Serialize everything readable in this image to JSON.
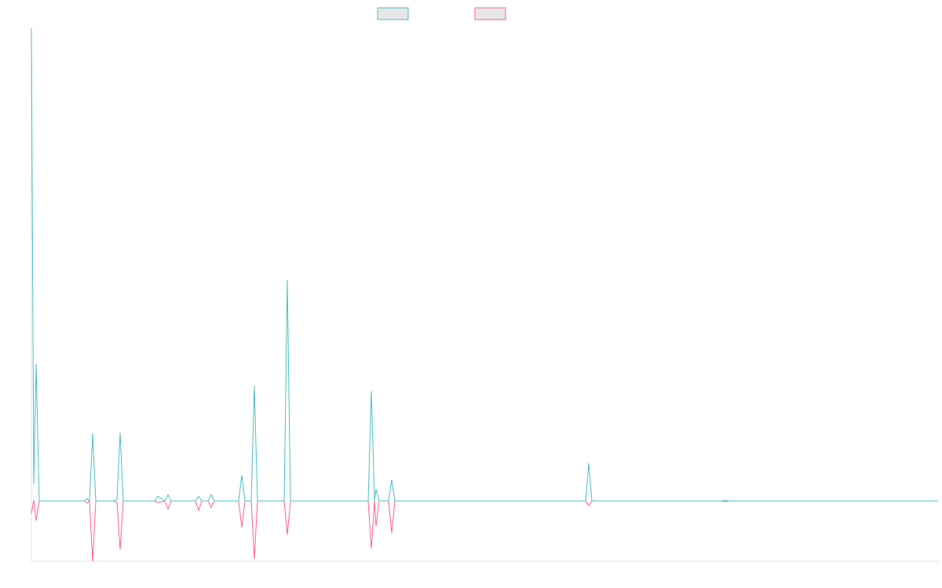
{
  "chart_data": {
    "type": "line",
    "x": [
      0,
      3,
      6,
      10,
      67,
      71,
      74,
      78,
      82,
      105,
      109,
      113,
      117,
      157,
      161,
      170,
      174,
      178,
      209,
      213,
      217,
      225,
      229,
      233,
      264,
      268,
      272,
      280,
      284,
      288,
      322,
      326,
      330,
      429,
      433,
      437,
      439,
      443,
      455,
      459,
      463,
      706,
      710,
      714,
      880,
      884,
      888,
      1155
    ],
    "series": [
      {
        "color": "#ff6384",
        "values": [
          -16,
          1,
          -25,
          0,
          0,
          -3,
          0,
          -77,
          0,
          0,
          -2,
          -62,
          0,
          0,
          -2,
          0,
          -10,
          0,
          0,
          -12,
          0,
          0,
          -8,
          0,
          0,
          -34,
          0,
          0,
          -74,
          0,
          0,
          -43,
          0,
          0,
          -61,
          0,
          -32,
          0,
          0,
          -41,
          0,
          0,
          -6,
          0,
          0,
          -1,
          0,
          0
        ]
      },
      {
        "color": "#4bc0c0",
        "values": [
          603,
          21,
          175,
          0,
          0,
          3,
          0,
          86,
          0,
          0,
          2,
          87,
          0,
          0,
          6,
          0,
          8,
          0,
          0,
          6,
          0,
          0,
          8,
          0,
          0,
          33,
          0,
          0,
          147,
          0,
          0,
          282,
          0,
          0,
          140,
          0,
          15,
          0,
          0,
          27,
          0,
          0,
          48,
          0,
          0,
          1,
          0,
          0
        ]
      }
    ],
    "xlim": [
      0,
      1155
    ],
    "ylim": [
      -77,
      603
    ]
  }
}
